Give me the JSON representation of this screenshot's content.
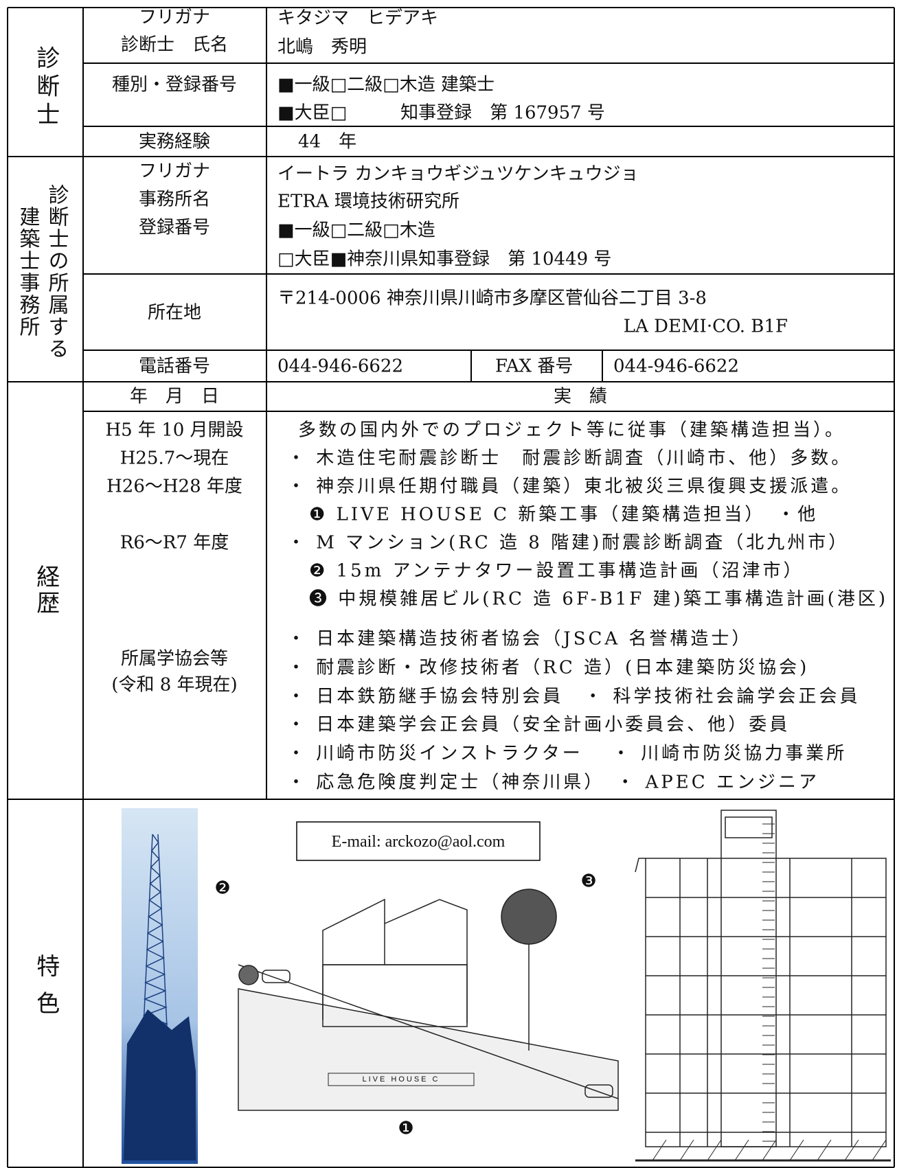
{
  "diagnostician": {
    "heading": "診断士",
    "furigana_label": "フリガナ",
    "name_label": "診断士　氏名",
    "furigana": "キタジマ　ヒデアキ",
    "name": "北嶋　秀明",
    "type_label": "種別・登録番号",
    "type_lines": [
      "■一級□二級□木造 建築士",
      "■大臣□　　　知事登録　第 167957 号"
    ],
    "experience_label": "実務経験",
    "experience": "44　年"
  },
  "office": {
    "heading_columns": [
      "診断士の所属する",
      "建築士事務所"
    ],
    "furigana_label": "フリガナ",
    "name_label": "事務所名",
    "reg_label": "登録番号",
    "furigana": "イートラ カンキョウギジュツケンキュウジョ",
    "name": "ETRA 環境技術研究所",
    "reg_lines": [
      "■一級□二級□木造",
      "□大臣■神奈川県知事登録　第 10449 号"
    ],
    "address_label": "所在地",
    "address_lines": [
      "〒214-0006 神奈川県川崎市多摩区菅仙谷二丁目 3-8",
      "LA DEMI·CO. B1F"
    ],
    "phone_label": "電話番号",
    "phone": "044-946-6622",
    "fax_label": "FAX 番号",
    "fax": "044-946-6622"
  },
  "career": {
    "heading": "経歴",
    "date_header": "年　月　日",
    "record_header": "実　績",
    "entries": [
      {
        "date": "H5 年 10 月開設",
        "records": [
          "多数の国内外でのプロジェクト等に従事（建築構造担当）。"
        ]
      },
      {
        "date": "H25.7～現在",
        "records": [
          "・ 木造住宅耐震診断士　耐震診断調査（川崎市、他）多数。"
        ]
      },
      {
        "date": "H26～H28 年度",
        "records": [
          "・ 神奈川県任期付職員（建築）東北被災三県復興支援派遣。",
          "❶ LIVE HOUSE C 新築工事（建築構造担当）　・他"
        ]
      },
      {
        "date": "R6～R7 年度",
        "records": [
          "・ M マンション(RC 造 8 階建)耐震診断調査（北九州市）",
          "❷ 15m アンテナタワー設置工事構造計画（沼津市）",
          "❸ 中規模雑居ビル(RC 造 6F-B1F 建)築工事構造計画(港区)"
        ]
      }
    ],
    "affiliations": {
      "label_lines": [
        "所属学協会等",
        "(令和 8 年現在)"
      ],
      "records": [
        "・ 日本建築構造技術者協会（JSCA 名誉構造士）",
        "・ 耐震診断・改修技術者（RC 造）(日本建築防災協会)",
        "・ 日本鉄筋継手協会特別会員　・ 科学技術社会論学会正会員",
        "・ 日本建築学会正会員（安全計画小委員会、他）委員",
        "・ 川崎市防災インストラクター　 ・ 川崎市防災協力事業所",
        "・ 応急危険度判定士（神奈川県）　・ APEC エンジニア"
      ]
    }
  },
  "features": {
    "heading": "特色",
    "email": "E-mail: arckozo@aol.com",
    "tower_mark": "❷",
    "building_mark": "❸",
    "house_mark": "❶",
    "house_caption": "LIVE HOUSE C"
  }
}
